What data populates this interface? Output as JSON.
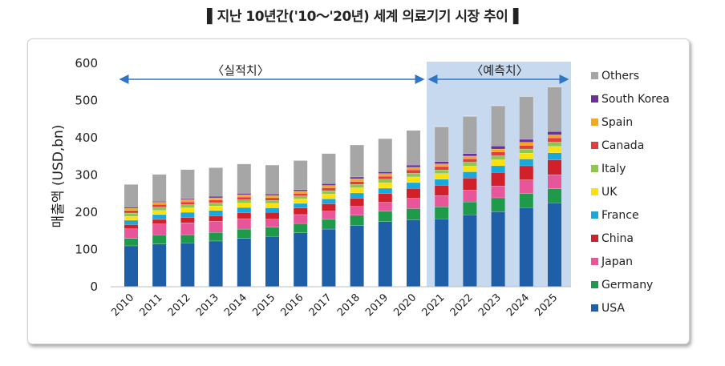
{
  "title": "▌지난 10년간('10～'20년) 세계 의료기기 시장 추이▐",
  "chart_data": {
    "type": "bar",
    "stacked": true,
    "title": "▌지난 10년간('10～'20년) 세계 의료기기 시장 추이▐",
    "ylabel": "매출액 (USD,bn)",
    "xlabel": "",
    "ylim": [
      0,
      600
    ],
    "yticks": [
      "0",
      "100",
      "200",
      "300",
      "400",
      "500",
      "600"
    ],
    "categories": [
      "2010",
      "2011",
      "2012",
      "2013",
      "2014",
      "2015",
      "2016",
      "2017",
      "2018",
      "2019",
      "2020",
      "2021",
      "2022",
      "2023",
      "2024",
      "2025"
    ],
    "annotations": [
      {
        "text": "〈실적치〉",
        "span": [
          "2010",
          "2020"
        ]
      },
      {
        "text": "〈예측치〉",
        "span": [
          "2021",
          "2025"
        ]
      }
    ],
    "series": [
      {
        "name": "USA",
        "color": "#1f5fa8",
        "values": [
          110,
          115,
          118,
          123,
          130,
          135,
          145,
          155,
          165,
          175,
          180,
          182,
          193,
          202,
          213,
          225
        ]
      },
      {
        "name": "Germany",
        "color": "#1e9a4a",
        "values": [
          20,
          24,
          22,
          23,
          25,
          25,
          25,
          26,
          27,
          28,
          30,
          33,
          35,
          37,
          38,
          38
        ]
      },
      {
        "name": "Japan",
        "color": "#e8569a",
        "values": [
          26,
          30,
          32,
          30,
          28,
          22,
          24,
          22,
          24,
          24,
          28,
          30,
          32,
          32,
          36,
          38
        ]
      },
      {
        "name": "China",
        "color": "#d0202a",
        "values": [
          11,
          12,
          14,
          15,
          16,
          18,
          18,
          20,
          22,
          24,
          26,
          28,
          32,
          36,
          38,
          40
        ]
      },
      {
        "name": "France",
        "color": "#1aa7dc",
        "values": [
          12,
          13,
          14,
          14,
          14,
          12,
          12,
          13,
          14,
          14,
          16,
          16,
          17,
          18,
          18,
          19
        ]
      },
      {
        "name": "UK",
        "color": "#ffe10a",
        "values": [
          10,
          11,
          12,
          12,
          12,
          12,
          12,
          13,
          14,
          14,
          15,
          15,
          15,
          16,
          16,
          17
        ]
      },
      {
        "name": "Italy",
        "color": "#8ec64e",
        "values": [
          9,
          9,
          9,
          9,
          9,
          8,
          8,
          9,
          9,
          10,
          10,
          10,
          11,
          11,
          11,
          12
        ]
      },
      {
        "name": "Canada",
        "color": "#e63c3c",
        "values": [
          7,
          7,
          7,
          7,
          7,
          7,
          7,
          8,
          8,
          8,
          9,
          9,
          9,
          10,
          10,
          11
        ]
      },
      {
        "name": "Spain",
        "color": "#f2a81c",
        "values": [
          6,
          6,
          6,
          6,
          6,
          6,
          6,
          6,
          7,
          7,
          7,
          7,
          7,
          8,
          8,
          8
        ]
      },
      {
        "name": "South Korea",
        "color": "#6b2f9b",
        "values": [
          3,
          3,
          3,
          4,
          4,
          4,
          4,
          5,
          5,
          5,
          6,
          6,
          7,
          8,
          8,
          9
        ]
      },
      {
        "name": "Others",
        "color": "#a6a6a6",
        "values": [
          61,
          72,
          78,
          77,
          79,
          78,
          78,
          81,
          86,
          89,
          93,
          94,
          100,
          108,
          115,
          120
        ]
      }
    ]
  }
}
